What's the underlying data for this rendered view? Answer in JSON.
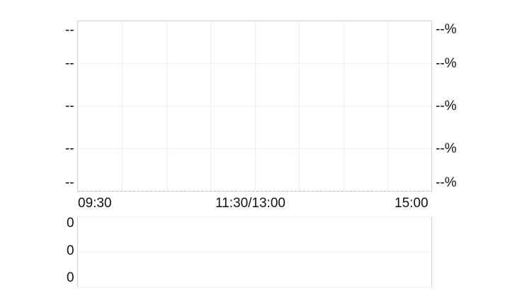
{
  "chart_data": [
    {
      "type": "line",
      "x_ticks": [
        "09:30",
        "11:30/13:00",
        "15:00"
      ],
      "y_left_labels": [
        "--",
        "--",
        "--",
        "--",
        "--"
      ],
      "y_right_labels": [
        "--%",
        "--%",
        "--%",
        "--%",
        "--%"
      ],
      "series": [],
      "grid": true
    },
    {
      "type": "bar",
      "y_labels": [
        "0",
        "0",
        "0"
      ],
      "series": [],
      "grid": true
    }
  ],
  "colors": {
    "grid": "#dddddd",
    "frame": "#d0d0d0",
    "text": "#111111"
  }
}
